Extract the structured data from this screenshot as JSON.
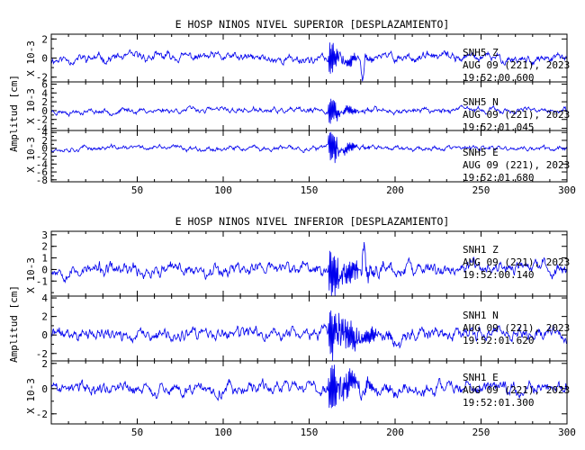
{
  "chart_data": [
    {
      "type": "line",
      "title": "E HOSP NINOS NIVEL SUPERIOR [DESPLAZAMIENTO]",
      "ylabel": "Amplitud [cm]",
      "xlim": [
        0,
        300
      ],
      "x_ticks": [
        "50",
        "100",
        "150",
        "200",
        "250",
        "300"
      ],
      "panels": [
        {
          "unit_label": "X 10-3",
          "ylim": [
            -2.5,
            2.5
          ],
          "y_ticks": [
            "-2",
            "0",
            "2"
          ],
          "annotation": [
            "SNH5  Z",
            "AUG 09 (221), 2023",
            "19:52:00.600"
          ],
          "series": {
            "name": "SNH5 Z",
            "noise_amplitude": 0.45,
            "burst_peak": 2.4,
            "burst_start": 161,
            "burst_end": 190,
            "secondary_peak_x": 181,
            "secondary_peak_y": -2.2,
            "seed": 11
          }
        },
        {
          "unit_label": "X 10-3",
          "ylim": [
            -4.5,
            6.5
          ],
          "y_ticks": [
            "-4",
            "-2",
            "0",
            "2",
            "4",
            "6"
          ],
          "annotation": [
            "SNH5  N",
            "AUG 09 (221), 2023",
            "19:52:01.045"
          ],
          "series": {
            "name": "SNH5 N",
            "noise_amplitude": 0.6,
            "burst_peak": 4.8,
            "burst_start": 161,
            "burst_end": 185,
            "seed": 23
          }
        },
        {
          "unit_label": "X 10-3",
          "ylim": [
            -8.5,
            4.5
          ],
          "y_ticks": [
            "-8",
            "-6",
            "-4",
            "-2",
            "0",
            "2",
            "4"
          ],
          "annotation": [
            "SNH5  E",
            "AUG 09 (221), 2023",
            "19:52:01.680"
          ],
          "series": {
            "name": "SNH5 E",
            "noise_amplitude": 0.6,
            "burst_peak": 6.5,
            "burst_start": 161,
            "burst_end": 185,
            "seed": 37
          }
        }
      ]
    },
    {
      "type": "line",
      "title": "E HOSP NINOS NIVEL INFERIOR [DESPLAZAMIENTO]",
      "ylabel": "Amplitud [cm]",
      "xlim": [
        0,
        300
      ],
      "x_ticks": [
        "50",
        "100",
        "150",
        "200",
        "250",
        "300"
      ],
      "panels": [
        {
          "unit_label": "X 10-3",
          "ylim": [
            -2.3,
            3.3
          ],
          "y_ticks": [
            "-1",
            "0",
            "1",
            "2",
            "3"
          ],
          "annotation": [
            "SNH1  Z",
            "AUG 09 (221), 2023",
            "19:52:00.140"
          ],
          "series": {
            "name": "SNH1 Z",
            "noise_amplitude": 0.55,
            "burst_peak": 2.8,
            "burst_start": 161,
            "burst_end": 200,
            "secondary_peak_x": 182,
            "secondary_peak_y": 2.9,
            "seed": 53
          }
        },
        {
          "unit_label": "X 10-3",
          "ylim": [
            -2.8,
            4.2
          ],
          "y_ticks": [
            "-2",
            "0",
            "2",
            "4"
          ],
          "annotation": [
            "SNH1  N",
            "AUG 09 (221), 2023",
            "19:52:01.620"
          ],
          "series": {
            "name": "SNH1 N",
            "noise_amplitude": 0.65,
            "burst_peak": 3.8,
            "burst_start": 161,
            "burst_end": 210,
            "seed": 71
          }
        },
        {
          "unit_label": "X 10-3",
          "ylim": [
            -2.8,
            2.2
          ],
          "y_ticks": [
            "-2",
            "0",
            "2"
          ],
          "annotation": [
            "SNH1  E",
            "AUG 09 (221), 2023",
            "19:52:01.300"
          ],
          "series": {
            "name": "SNH1 E",
            "noise_amplitude": 0.5,
            "burst_peak": 2.7,
            "burst_start": 161,
            "burst_end": 200,
            "seed": 89
          }
        }
      ]
    }
  ],
  "colors": {
    "trace": "#0000ee",
    "axis": "#000000",
    "background": "#ffffff"
  }
}
